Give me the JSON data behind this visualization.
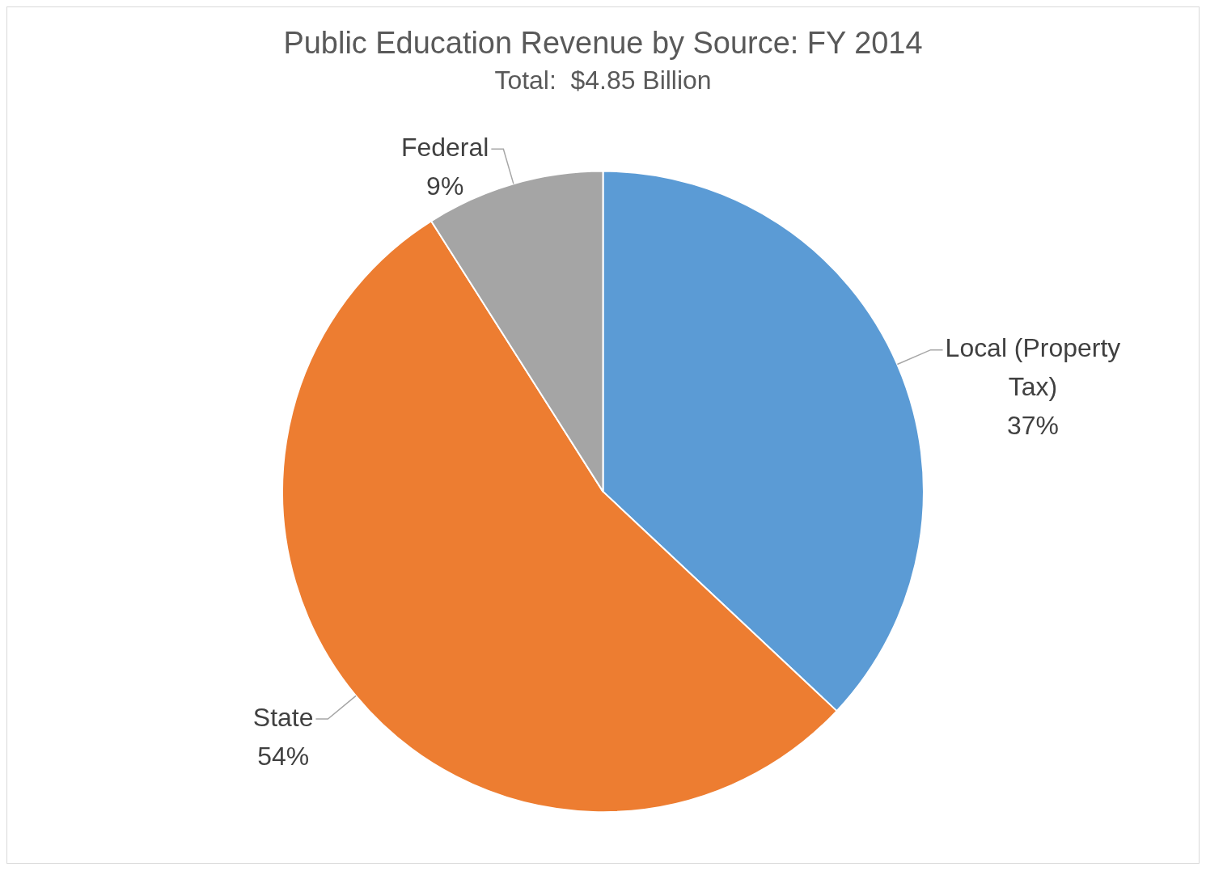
{
  "chart_data": {
    "type": "pie",
    "title": "Public Education Revenue by Source: FY 2014",
    "subtitle": "Total:  $4.85 Billion",
    "categories": [
      "Local (Property Tax)",
      "State",
      "Federal"
    ],
    "values": [
      37,
      54,
      9
    ],
    "colors": [
      "#5b9bd5",
      "#ed7d31",
      "#a5a5a5"
    ],
    "value_labels": [
      "37%",
      "54%",
      "9%"
    ],
    "legend": false
  }
}
